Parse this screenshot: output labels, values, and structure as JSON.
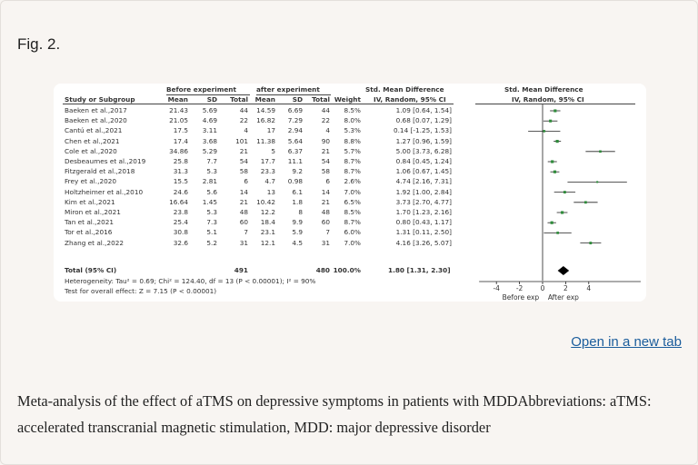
{
  "figure_label": "Fig. 2.",
  "open_link": "Open in a new tab",
  "caption": "Meta-analysis of the effect of aTMS on depressive symptoms in patients with MDDAbbreviations: aTMS: accelerated transcranial magnetic stimulation, MDD: major depressive disorder",
  "forest": {
    "header_groups": {
      "before": "Before experiment",
      "after": "after experiment",
      "smd": "Std. Mean Difference",
      "smd_plot": "Std. Mean Difference"
    },
    "columns": {
      "study": "Study or Subgroup",
      "mean1": "Mean",
      "sd1": "SD",
      "total1": "Total",
      "mean2": "Mean",
      "sd2": "SD",
      "total2": "Total",
      "weight": "Weight",
      "ci": "IV, Random, 95% CI",
      "ci_plot": "IV, Random, 95% CI"
    },
    "rows": [
      {
        "study": "Baeken et al.,2017",
        "m1": "21.43",
        "sd1": "5.69",
        "n1": "44",
        "m2": "14.59",
        "sd2": "6.69",
        "n2": "44",
        "w": "8.5%",
        "ci": "1.09 [0.64, 1.54]",
        "est": 1.09,
        "lo": 0.64,
        "hi": 1.54
      },
      {
        "study": "Baeken et al.,2020",
        "m1": "21.05",
        "sd1": "4.69",
        "n1": "22",
        "m2": "16.82",
        "sd2": "7.29",
        "n2": "22",
        "w": "8.0%",
        "ci": "0.68 [0.07, 1.29]",
        "est": 0.68,
        "lo": 0.07,
        "hi": 1.29
      },
      {
        "study": "Cantú et al.,2021",
        "m1": "17.5",
        "sd1": "3.11",
        "n1": "4",
        "m2": "17",
        "sd2": "2.94",
        "n2": "4",
        "w": "5.3%",
        "ci": "0.14 [-1.25, 1.53]",
        "est": 0.14,
        "lo": -1.25,
        "hi": 1.53
      },
      {
        "study": "Chen et al.,2021",
        "m1": "17.4",
        "sd1": "3.68",
        "n1": "101",
        "m2": "11.38",
        "sd2": "5.64",
        "n2": "90",
        "w": "8.8%",
        "ci": "1.27 [0.96, 1.59]",
        "est": 1.27,
        "lo": 0.96,
        "hi": 1.59
      },
      {
        "study": "Cole et al.,2020",
        "m1": "34.86",
        "sd1": "5.29",
        "n1": "21",
        "m2": "5",
        "sd2": "6.37",
        "n2": "21",
        "w": "5.7%",
        "ci": "5.00 [3.73, 6.28]",
        "est": 5.0,
        "lo": 3.73,
        "hi": 6.28
      },
      {
        "study": "Desbeaumes et al.,2019",
        "m1": "25.8",
        "sd1": "7.7",
        "n1": "54",
        "m2": "17.7",
        "sd2": "11.1",
        "n2": "54",
        "w": "8.7%",
        "ci": "0.84 [0.45, 1.24]",
        "est": 0.84,
        "lo": 0.45,
        "hi": 1.24
      },
      {
        "study": "Fitzgerald et al.,2018",
        "m1": "31.3",
        "sd1": "5.3",
        "n1": "58",
        "m2": "23.3",
        "sd2": "9.2",
        "n2": "58",
        "w": "8.7%",
        "ci": "1.06 [0.67, 1.45]",
        "est": 1.06,
        "lo": 0.67,
        "hi": 1.45
      },
      {
        "study": "Frey et al.,2020",
        "m1": "15.5",
        "sd1": "2.81",
        "n1": "6",
        "m2": "4.7",
        "sd2": "0.98",
        "n2": "6",
        "w": "2.6%",
        "ci": "4.74 [2.16, 7.31]",
        "est": 4.74,
        "lo": 2.16,
        "hi": 7.31
      },
      {
        "study": "Holtzheimer et al.,2010",
        "m1": "24.6",
        "sd1": "5.6",
        "n1": "14",
        "m2": "13",
        "sd2": "6.1",
        "n2": "14",
        "w": "7.0%",
        "ci": "1.92 [1.00, 2.84]",
        "est": 1.92,
        "lo": 1.0,
        "hi": 2.84
      },
      {
        "study": "Kim et al.,2021",
        "m1": "16.64",
        "sd1": "1.45",
        "n1": "21",
        "m2": "10.42",
        "sd2": "1.8",
        "n2": "21",
        "w": "6.5%",
        "ci": "3.73 [2.70, 4.77]",
        "est": 3.73,
        "lo": 2.7,
        "hi": 4.77
      },
      {
        "study": "Miron et al.,2021",
        "m1": "23.8",
        "sd1": "5.3",
        "n1": "48",
        "m2": "12.2",
        "sd2": "8",
        "n2": "48",
        "w": "8.5%",
        "ci": "1.70 [1.23, 2.16]",
        "est": 1.7,
        "lo": 1.23,
        "hi": 2.16
      },
      {
        "study": "Tan et al.,2021",
        "m1": "25.4",
        "sd1": "7.3",
        "n1": "60",
        "m2": "18.4",
        "sd2": "9.9",
        "n2": "60",
        "w": "8.7%",
        "ci": "0.80 [0.43, 1.17]",
        "est": 0.8,
        "lo": 0.43,
        "hi": 1.17
      },
      {
        "study": "Tor et al.,2016",
        "m1": "30.8",
        "sd1": "5.1",
        "n1": "7",
        "m2": "23.1",
        "sd2": "5.9",
        "n2": "7",
        "w": "6.0%",
        "ci": "1.31 [0.11, 2.50]",
        "est": 1.31,
        "lo": 0.11,
        "hi": 2.5
      },
      {
        "study": "Zhang et al.,2022",
        "m1": "32.6",
        "sd1": "5.2",
        "n1": "31",
        "m2": "12.1",
        "sd2": "4.5",
        "n2": "31",
        "w": "7.0%",
        "ci": "4.16 [3.26, 5.07]",
        "est": 4.16,
        "lo": 3.26,
        "hi": 5.07
      }
    ],
    "total": {
      "label": "Total (95% CI)",
      "n1": "491",
      "n2": "480",
      "w": "100.0%",
      "ci": "1.80 [1.31, 2.30]",
      "est": 1.8,
      "lo": 1.31,
      "hi": 2.3
    },
    "heterogeneity": "Heterogeneity: Tau² = 0.69; Chi² = 124.40, df = 13 (P < 0.00001); I² = 90%",
    "overall_effect": "Test for overall effect: Z = 7.15 (P < 0.00001)",
    "axis": {
      "ticks": [
        -4,
        -2,
        0,
        2,
        4
      ],
      "tick_labels": [
        "-4",
        "-2",
        "0",
        "2",
        "4"
      ],
      "range": [
        -5.5,
        8.5
      ],
      "favours_left": "Before exp",
      "favours_right": "After exp"
    },
    "colors": {
      "square": "#2e8b3a",
      "diamond": "#000000",
      "line": "#222222"
    }
  }
}
